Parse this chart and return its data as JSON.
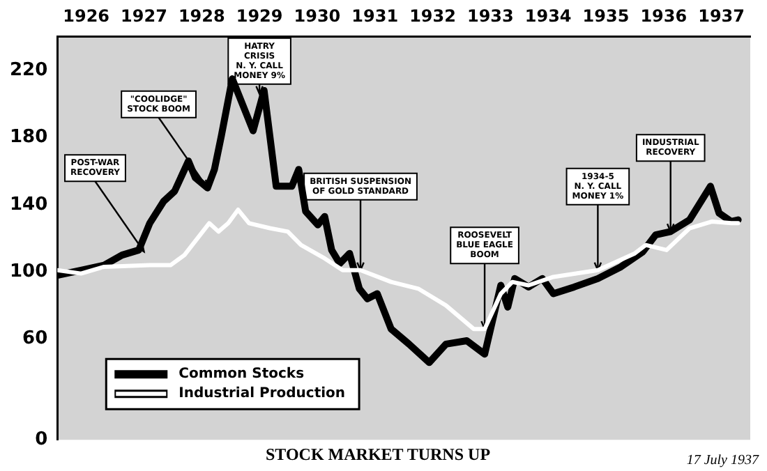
{
  "chart_data": {
    "type": "line",
    "title": "STOCK MARKET TURNS UP",
    "xlim": [
      1926,
      1938
    ],
    "xticks": [
      {
        "value": 1926.5,
        "label": "1926"
      },
      {
        "value": 1927.5,
        "label": "1927"
      },
      {
        "value": 1928.5,
        "label": "1928"
      },
      {
        "value": 1929.5,
        "label": "1929"
      },
      {
        "value": 1930.5,
        "label": "1930"
      },
      {
        "value": 1931.5,
        "label": "1931"
      },
      {
        "value": 1932.5,
        "label": "1932"
      },
      {
        "value": 1933.5,
        "label": "1933"
      },
      {
        "value": 1934.5,
        "label": "1934"
      },
      {
        "value": 1935.5,
        "label": "1935"
      },
      {
        "value": 1936.5,
        "label": "1936"
      },
      {
        "value": 1937.5,
        "label": "1937"
      }
    ],
    "ylim": [
      0,
      240
    ],
    "yticks": [
      0,
      60,
      100,
      140,
      180,
      220
    ],
    "grid": false,
    "legend": "bottom left",
    "marker": "none",
    "series": [
      {
        "name": "Common Stocks",
        "color": "#000000",
        "x": [
          1926.0,
          1926.41,
          1926.81,
          1927.12,
          1927.41,
          1927.6,
          1927.84,
          1928.03,
          1928.27,
          1928.39,
          1928.6,
          1928.72,
          1928.84,
          1929.03,
          1929.39,
          1929.58,
          1929.79,
          1930.06,
          1930.18,
          1930.3,
          1930.51,
          1930.63,
          1930.75,
          1930.89,
          1931.06,
          1931.23,
          1931.37,
          1931.54,
          1931.78,
          1932.09,
          1932.44,
          1932.73,
          1933.09,
          1933.4,
          1933.68,
          1933.8,
          1933.92,
          1934.16,
          1934.4,
          1934.59,
          1934.95,
          1935.36,
          1935.76,
          1936.14,
          1936.36,
          1936.62,
          1936.95,
          1937.31,
          1937.46,
          1937.67,
          1937.79
        ],
        "values": [
          98,
          101,
          104,
          110,
          113,
          129,
          142,
          148,
          166,
          156,
          150,
          161,
          181,
          215,
          184,
          208,
          151,
          151,
          161,
          136,
          128,
          133,
          113,
          105,
          111,
          90,
          84,
          87,
          66,
          57,
          46,
          57,
          59,
          51,
          92,
          79,
          96,
          91,
          96,
          87,
          91,
          96,
          103,
          112,
          122,
          124,
          131,
          151,
          135,
          130,
          131
        ]
      },
      {
        "name": "Industrial Production",
        "color": "#ffffff",
        "x": [
          1926.0,
          1926.41,
          1926.81,
          1927.6,
          1927.96,
          1928.2,
          1928.63,
          1928.79,
          1928.96,
          1929.13,
          1929.32,
          1929.68,
          1929.99,
          1930.22,
          1930.63,
          1930.94,
          1931.25,
          1931.78,
          1932.25,
          1932.73,
          1933.21,
          1933.4,
          1933.68,
          1933.88,
          1934.16,
          1934.59,
          1935.36,
          1936.0,
          1936.19,
          1936.55,
          1936.95,
          1937.34,
          1937.67,
          1937.79
        ],
        "values": [
          101,
          99,
          103,
          104,
          104,
          110,
          129,
          124,
          129,
          137,
          129,
          126,
          124,
          116,
          108,
          101,
          101,
          94,
          90,
          80,
          66,
          66,
          87,
          94,
          92,
          97,
          101,
          111,
          116,
          113,
          126,
          130,
          129,
          129
        ]
      }
    ],
    "annotations": [
      {
        "text": "POST-WAR\nRECOVERY",
        "x": 1927.5,
        "y": 112
      },
      {
        "text": "\"COOLIDGE\"\nSTOCK BOOM",
        "x": 1928.6,
        "y": 150
      },
      {
        "text": "HATRY\nCRISIS\nN. Y. CALL\nMONEY 9%",
        "x": 1929.5,
        "y": 206
      },
      {
        "text": "BRITISH SUSPENSION\nOF GOLD STANDARD",
        "x": 1931.25,
        "y": 101
      },
      {
        "text": "ROOSEVELT\nBLUE EAGLE\nBOOM",
        "x": 1933.4,
        "y": 66
      },
      {
        "text": "1934-5\nN. Y. CALL\nMONEY 1%",
        "x": 1935.36,
        "y": 101
      },
      {
        "text": "INDUSTRIAL\nRECOVERY",
        "x": 1936.62,
        "y": 124
      },
      "17 July 1937"
    ]
  }
}
